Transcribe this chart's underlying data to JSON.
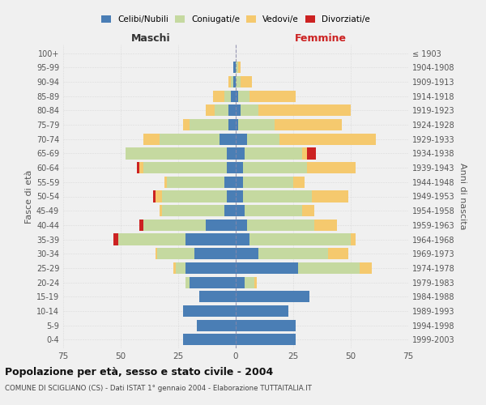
{
  "age_groups": [
    "100+",
    "95-99",
    "90-94",
    "85-89",
    "80-84",
    "75-79",
    "70-74",
    "65-69",
    "60-64",
    "55-59",
    "50-54",
    "45-49",
    "40-44",
    "35-39",
    "30-34",
    "25-29",
    "20-24",
    "15-19",
    "10-14",
    "5-9",
    "0-4"
  ],
  "birth_years": [
    "≤ 1903",
    "1904-1908",
    "1909-1913",
    "1914-1918",
    "1919-1923",
    "1924-1928",
    "1929-1933",
    "1934-1938",
    "1939-1943",
    "1944-1948",
    "1949-1953",
    "1954-1958",
    "1959-1963",
    "1964-1968",
    "1969-1973",
    "1974-1978",
    "1979-1983",
    "1984-1988",
    "1989-1993",
    "1994-1998",
    "1999-2003"
  ],
  "maschi": {
    "celibi": [
      0,
      1,
      1,
      2,
      3,
      3,
      7,
      4,
      4,
      5,
      4,
      5,
      13,
      22,
      18,
      22,
      20,
      16,
      23,
      17,
      23
    ],
    "coniugati": [
      0,
      0,
      1,
      3,
      6,
      17,
      26,
      44,
      36,
      25,
      28,
      27,
      27,
      29,
      16,
      4,
      2,
      0,
      0,
      0,
      0
    ],
    "vedovi": [
      0,
      0,
      1,
      5,
      4,
      3,
      7,
      0,
      2,
      1,
      3,
      1,
      0,
      0,
      1,
      1,
      0,
      0,
      0,
      0,
      0
    ],
    "divorziati": [
      0,
      0,
      0,
      0,
      0,
      0,
      0,
      0,
      1,
      0,
      1,
      0,
      2,
      2,
      0,
      0,
      0,
      0,
      0,
      0,
      0
    ]
  },
  "femmine": {
    "nubili": [
      0,
      0,
      0,
      1,
      2,
      1,
      5,
      4,
      3,
      3,
      3,
      4,
      5,
      6,
      10,
      27,
      4,
      32,
      23,
      26,
      26
    ],
    "coniugate": [
      0,
      1,
      2,
      5,
      8,
      16,
      14,
      25,
      28,
      22,
      30,
      25,
      29,
      44,
      30,
      27,
      4,
      0,
      0,
      0,
      0
    ],
    "vedove": [
      0,
      1,
      5,
      20,
      40,
      29,
      42,
      2,
      21,
      5,
      16,
      5,
      10,
      2,
      9,
      5,
      1,
      0,
      0,
      0,
      0
    ],
    "divorziate": [
      0,
      0,
      0,
      0,
      0,
      0,
      0,
      4,
      0,
      0,
      0,
      0,
      0,
      0,
      0,
      0,
      0,
      0,
      0,
      0,
      0
    ]
  },
  "colors": {
    "celibi": "#4a7eb5",
    "coniugati": "#c5d9a0",
    "vedovi": "#f5c96e",
    "divorziati": "#cc2222"
  },
  "title": "Popolazione per età, sesso e stato civile - 2004",
  "subtitle": "COMUNE DI SCIGLIANO (CS) - Dati ISTAT 1° gennaio 2004 - Elaborazione TUTTAITALIA.IT",
  "xlabel_left": "Maschi",
  "xlabel_right": "Femmine",
  "ylabel_left": "Fasce di età",
  "ylabel_right": "Anni di nascita",
  "xlim": 75,
  "background": "#f0f0f0",
  "bar_height": 0.8
}
